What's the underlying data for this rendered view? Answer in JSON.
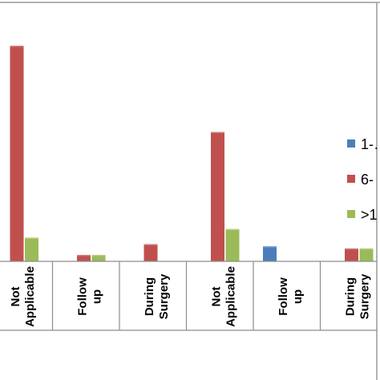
{
  "chart_data": {
    "type": "bar",
    "title": "",
    "xlabel": "",
    "ylabel": "",
    "ylim": [
      0,
      100
    ],
    "grid": false,
    "legend_position": "right",
    "categories": [
      [
        "Not",
        "Applicable"
      ],
      [
        "Follow",
        "up"
      ],
      [
        "During",
        "Surgery"
      ],
      [
        "Not",
        "Applicable"
      ],
      [
        "Follow",
        "up"
      ],
      [
        "During",
        "Surgery"
      ]
    ],
    "series": [
      {
        "name": "1-…",
        "color": "#4a7ebb",
        "values": [
          0,
          0,
          0,
          0,
          7,
          0
        ]
      },
      {
        "name": "6-",
        "color": "#c0504d",
        "values": [
          100,
          3,
          8,
          60,
          0,
          6
        ]
      },
      {
        "name": ">1",
        "color": "#9bbb59",
        "values": [
          11,
          3,
          0,
          15,
          0,
          6
        ]
      }
    ]
  }
}
